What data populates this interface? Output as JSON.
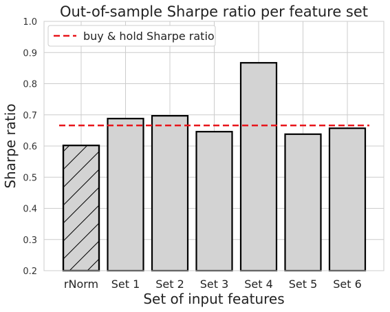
{
  "chart_data": {
    "type": "bar",
    "title": "Out-of-sample Sharpe ratio per feature set",
    "xlabel": "Set of input features",
    "ylabel": "Sharpe ratio",
    "categories": [
      "rNorm",
      "Set 1",
      "Set 2",
      "Set 3",
      "Set 4",
      "Set 5",
      "Set 6"
    ],
    "values": [
      0.602,
      0.688,
      0.697,
      0.646,
      0.867,
      0.638,
      0.657
    ],
    "hatched": [
      true,
      false,
      false,
      false,
      false,
      false,
      false
    ],
    "ylim": [
      0.2,
      1.0
    ],
    "yticks": [
      "0.2",
      "0.3",
      "0.4",
      "0.5",
      "0.6",
      "0.7",
      "0.8",
      "0.9",
      "1.0"
    ],
    "grid": true,
    "reference_line": {
      "label": "buy & hold Sharpe ratio",
      "value": 0.666,
      "color": "#e8141a",
      "style": "dashed"
    },
    "legend": {
      "placement": "top-left",
      "entries": [
        "buy & hold Sharpe ratio"
      ]
    },
    "colors": {
      "bar_fill": "#d3d3d3",
      "bar_edge": "#000000",
      "grid": "#cccccc",
      "frame": "#cccccc"
    }
  }
}
